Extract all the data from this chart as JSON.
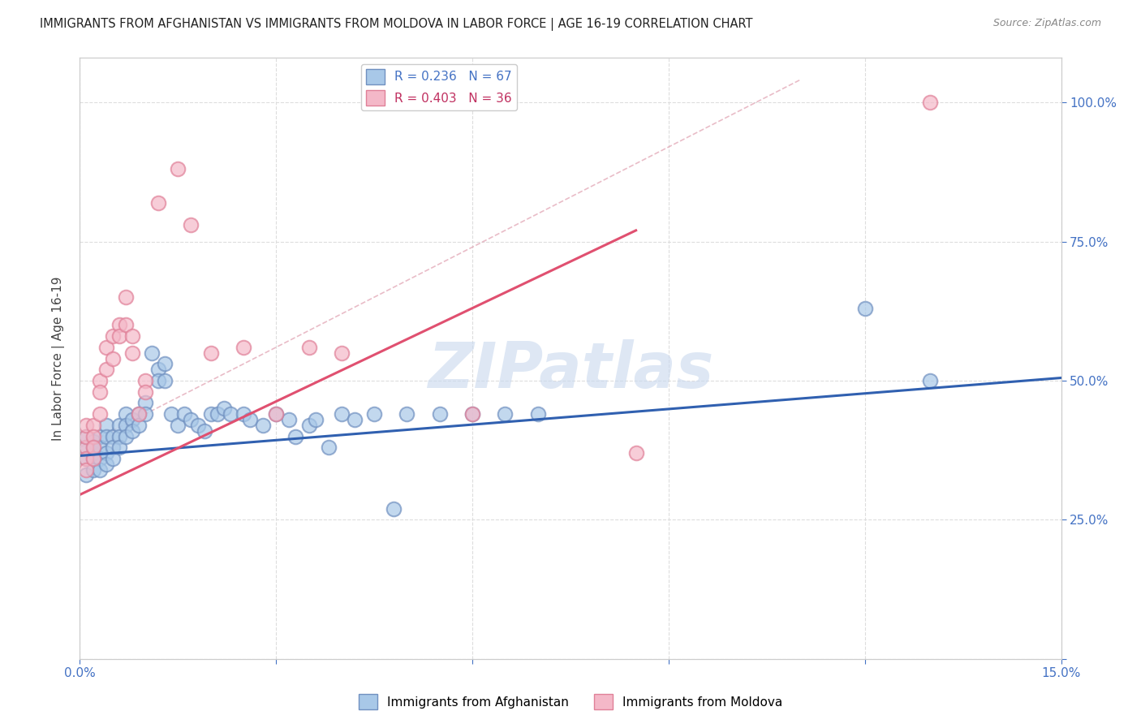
{
  "title": "IMMIGRANTS FROM AFGHANISTAN VS IMMIGRANTS FROM MOLDOVA IN LABOR FORCE | AGE 16-19 CORRELATION CHART",
  "source": "Source: ZipAtlas.com",
  "ylabel": "In Labor Force | Age 16-19",
  "xlim": [
    0.0,
    0.15
  ],
  "ylim": [
    0.0,
    1.08
  ],
  "afghanistan_color": "#a8c8e8",
  "moldova_color": "#f4b8c8",
  "afghanistan_edge": "#7090c0",
  "moldova_edge": "#e08098",
  "regression_blue": "#3060b0",
  "regression_pink": "#e05070",
  "r_afghanistan": 0.236,
  "n_afghanistan": 67,
  "r_moldova": 0.403,
  "n_moldova": 36,
  "grid_color": "#dddddd",
  "background_color": "#ffffff",
  "watermark": "ZIPatlas",
  "blue_line_x0": 0.0,
  "blue_line_y0": 0.365,
  "blue_line_x1": 0.15,
  "blue_line_y1": 0.505,
  "pink_line_x0": 0.0,
  "pink_line_y0": 0.295,
  "pink_line_x1": 0.085,
  "pink_line_y1": 0.77,
  "dash_line_x0": 0.0,
  "dash_line_y0": 0.38,
  "dash_line_x1": 0.11,
  "dash_line_y1": 1.04,
  "afghanistan_x": [
    0.001,
    0.001,
    0.001,
    0.001,
    0.002,
    0.002,
    0.002,
    0.002,
    0.002,
    0.003,
    0.003,
    0.003,
    0.003,
    0.004,
    0.004,
    0.004,
    0.004,
    0.005,
    0.005,
    0.005,
    0.006,
    0.006,
    0.006,
    0.007,
    0.007,
    0.007,
    0.008,
    0.008,
    0.009,
    0.009,
    0.01,
    0.01,
    0.011,
    0.012,
    0.012,
    0.013,
    0.013,
    0.014,
    0.015,
    0.016,
    0.017,
    0.018,
    0.019,
    0.02,
    0.021,
    0.022,
    0.023,
    0.025,
    0.026,
    0.028,
    0.03,
    0.032,
    0.033,
    0.035,
    0.036,
    0.038,
    0.04,
    0.042,
    0.045,
    0.048,
    0.05,
    0.055,
    0.06,
    0.065,
    0.07,
    0.12,
    0.13
  ],
  "afghanistan_y": [
    0.38,
    0.4,
    0.36,
    0.33,
    0.37,
    0.39,
    0.36,
    0.38,
    0.34,
    0.4,
    0.38,
    0.36,
    0.34,
    0.42,
    0.4,
    0.37,
    0.35,
    0.4,
    0.38,
    0.36,
    0.42,
    0.4,
    0.38,
    0.44,
    0.42,
    0.4,
    0.43,
    0.41,
    0.44,
    0.42,
    0.46,
    0.44,
    0.55,
    0.52,
    0.5,
    0.53,
    0.5,
    0.44,
    0.42,
    0.44,
    0.43,
    0.42,
    0.41,
    0.44,
    0.44,
    0.45,
    0.44,
    0.44,
    0.43,
    0.42,
    0.44,
    0.43,
    0.4,
    0.42,
    0.43,
    0.38,
    0.44,
    0.43,
    0.44,
    0.27,
    0.44,
    0.44,
    0.44,
    0.44,
    0.44,
    0.63,
    0.5
  ],
  "moldova_x": [
    0.001,
    0.001,
    0.001,
    0.001,
    0.001,
    0.002,
    0.002,
    0.002,
    0.002,
    0.003,
    0.003,
    0.003,
    0.004,
    0.004,
    0.005,
    0.005,
    0.006,
    0.006,
    0.007,
    0.007,
    0.008,
    0.008,
    0.009,
    0.01,
    0.01,
    0.012,
    0.015,
    0.017,
    0.02,
    0.025,
    0.03,
    0.035,
    0.04,
    0.06,
    0.085,
    0.13
  ],
  "moldova_y": [
    0.38,
    0.4,
    0.42,
    0.36,
    0.34,
    0.42,
    0.4,
    0.36,
    0.38,
    0.5,
    0.48,
    0.44,
    0.56,
    0.52,
    0.58,
    0.54,
    0.6,
    0.58,
    0.65,
    0.6,
    0.58,
    0.55,
    0.44,
    0.5,
    0.48,
    0.82,
    0.88,
    0.78,
    0.55,
    0.56,
    0.44,
    0.56,
    0.55,
    0.44,
    0.37,
    1.0
  ]
}
